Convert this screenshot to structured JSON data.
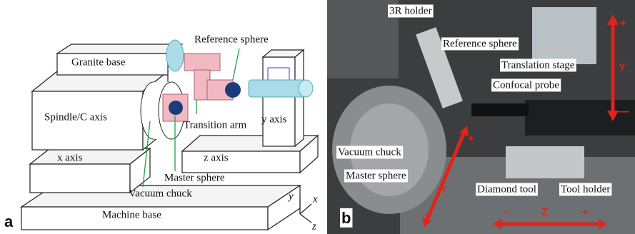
{
  "panels": [
    {
      "label": "a",
      "annotations": [
        "Granite base",
        "Reference sphere",
        "Spindle/C axis",
        "Transition arm",
        "y axis",
        "x axis",
        "z axis",
        "Master sphere",
        "Vacuum chuck",
        "Machine base"
      ],
      "axes": [
        "y",
        "x",
        "z"
      ]
    },
    {
      "label": "b",
      "annotations": [
        "3R holder",
        "Reference sphere",
        "Translation stage",
        "Confocal probe",
        "Vacuum chuck",
        "Master sphere",
        "Diamond tool",
        "Tool holder"
      ],
      "axes": [
        {
          "name": "Y",
          "plus": "+",
          "minus": "—"
        },
        {
          "name": "X",
          "plus": "+",
          "minus": "-"
        },
        {
          "name": "Z",
          "plus": "+",
          "minus": "-"
        }
      ]
    }
  ]
}
